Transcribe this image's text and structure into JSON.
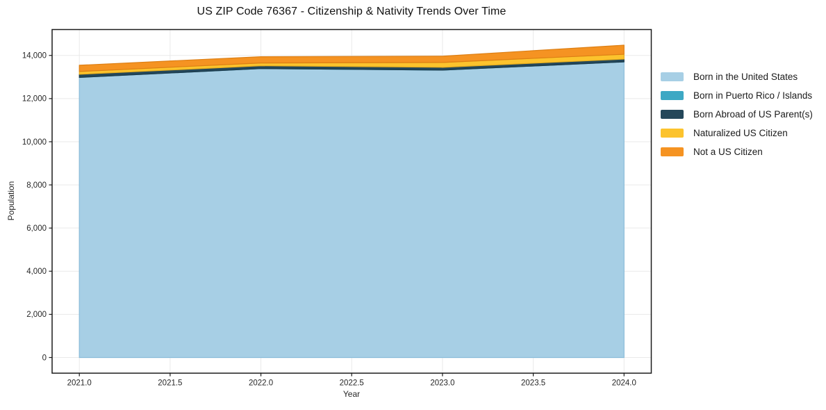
{
  "title": "US ZIP Code 76367 - Citizenship & Nativity Trends Over Time",
  "chart_data": {
    "type": "area",
    "stacked": true,
    "title": "US ZIP Code 76367 - Citizenship & Nativity Trends Over Time",
    "xlabel": "Year",
    "ylabel": "Population",
    "x": [
      2021,
      2022,
      2023,
      2024
    ],
    "series": [
      {
        "name": "Born in the United States",
        "color": "#a7cfe5",
        "edge": "#8bbdd9",
        "values": [
          12980,
          13390,
          13320,
          13700
        ]
      },
      {
        "name": "Born in Puerto Rico / Islands",
        "color": "#3da8c4",
        "edge": "#3492ac",
        "values": [
          0,
          0,
          0,
          0
        ]
      },
      {
        "name": "Born Abroad of US Parent(s)",
        "color": "#24475a",
        "edge": "#1b3a4b",
        "values": [
          145,
          130,
          130,
          130
        ]
      },
      {
        "name": "Naturalized US Citizen",
        "color": "#fcc32d",
        "edge": "#e5ad1f",
        "values": [
          130,
          130,
          225,
          225
        ]
      },
      {
        "name": "Not a US Citizen",
        "color": "#f59322",
        "edge": "#dd7f14",
        "values": [
          290,
          290,
          290,
          420
        ]
      }
    ],
    "totals": [
      13545,
      13940,
      13965,
      14475
    ],
    "xlim": [
      2020.85,
      2024.15
    ],
    "ylim": [
      -725,
      15200
    ],
    "xticks": {
      "values": [
        2021.0,
        2021.5,
        2022.0,
        2022.5,
        2023.0,
        2023.5,
        2024.0
      ],
      "labels": [
        "2021.0",
        "2021.5",
        "2022.0",
        "2022.5",
        "2023.0",
        "2023.5",
        "2024.0"
      ]
    },
    "yticks": {
      "values": [
        0,
        2000,
        4000,
        6000,
        8000,
        10000,
        12000,
        14000
      ],
      "labels": [
        "0",
        "2,000",
        "4,000",
        "6,000",
        "8,000",
        "10,000",
        "12,000",
        "14,000"
      ]
    },
    "grid": true,
    "grid_color": "#e9e9e9",
    "spine_color": "#1a1a1a",
    "legend_position": "right"
  }
}
